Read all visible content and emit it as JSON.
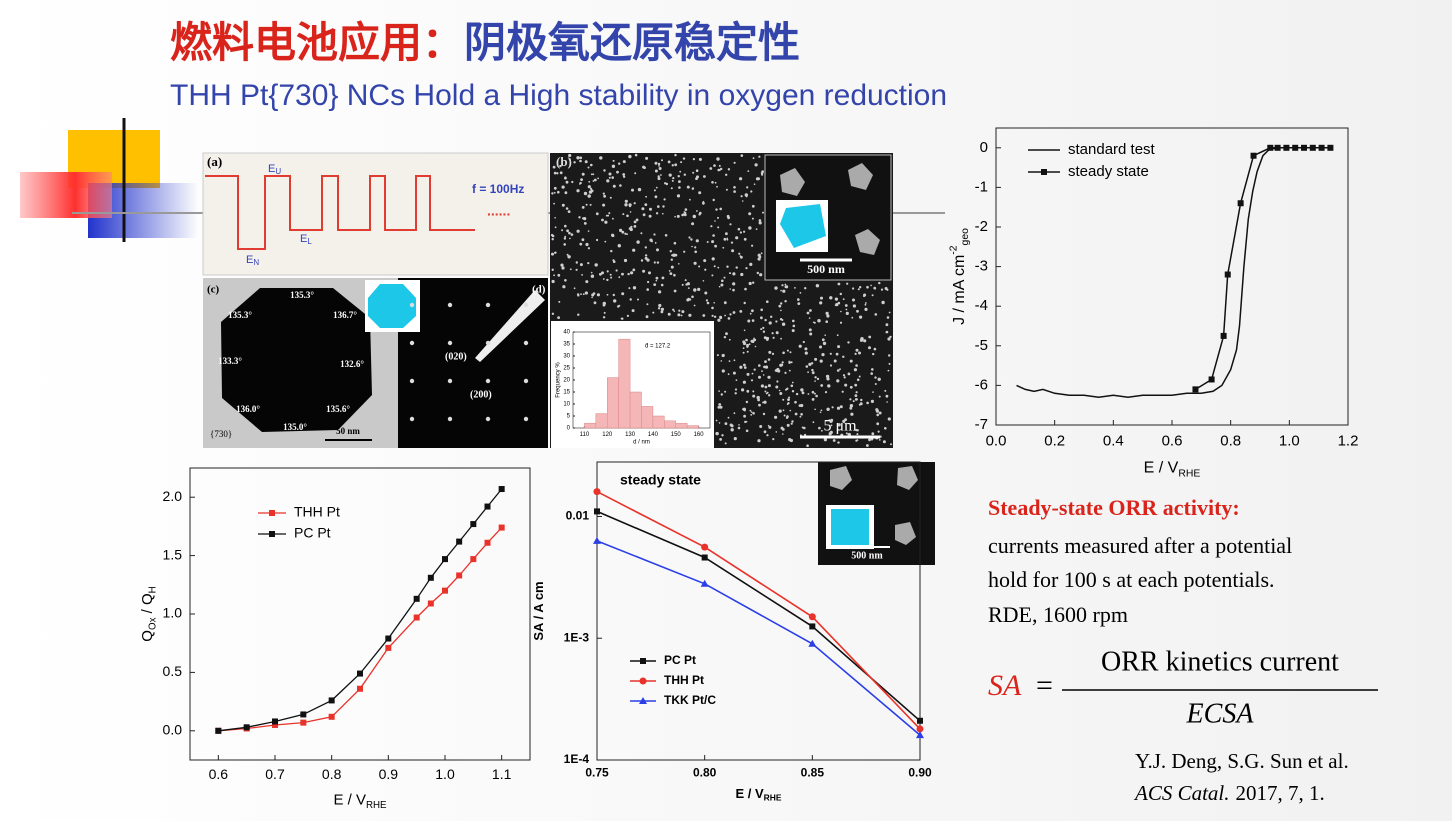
{
  "title": {
    "part1": "燃料电池应用：",
    "part2": "阴极氧还原稳定性"
  },
  "subtitle": "THH Pt{730} NCs Hold a High stability in oxygen reduction",
  "figure": {
    "a": {
      "label": "(a)",
      "eu": "E",
      "eu_sub": "U",
      "el": "E",
      "el_sub": "L",
      "en": "E",
      "en_sub": "N",
      "freq": "f = 100Hz",
      "dots": "......"
    },
    "b": {
      "label": "(b)",
      "inset_scale": "500 nm",
      "scale": "5 μm"
    },
    "c": {
      "label": "(c)",
      "angles": [
        "135.3°",
        "136.7°",
        "132.6°",
        "135.6°",
        "135.0°",
        "136.0°",
        "133.3°",
        "135.3°"
      ],
      "facet": "{730}",
      "scale": "50 nm"
    },
    "d": {
      "label": "(d)",
      "spots": [
        "(020)",
        "(200)"
      ]
    }
  },
  "note": {
    "heading": "Steady-state ORR activity:",
    "body": [
      "currents measured after a potential",
      "hold for 100 s at each potentials.",
      "RDE, 1600 rpm"
    ]
  },
  "formula": {
    "lhs": "SA",
    "eq": "=",
    "numerator": "ORR kinetics current",
    "denominator": "ECSA"
  },
  "reference": {
    "authors": "Y.J. Deng, S.G. Sun et al.",
    "journal": "ACS Catal.",
    "details": "2017, 7, 1."
  },
  "chart_data": [
    {
      "type": "line",
      "xlabel": {
        "text": "E / V",
        "sub": "RHE"
      },
      "ylabel": {
        "text": "J / mA cm",
        "sup": "-2",
        "sub": "geo"
      },
      "xlim": [
        0,
        1.2
      ],
      "xticks": [
        {
          "value": 0,
          "label": "0.0"
        },
        0.2,
        0.4,
        0.6,
        0.8,
        {
          "value": 1,
          "label": "1.0"
        },
        1.2
      ],
      "ylim": [
        -7,
        0.5
      ],
      "yticks": [
        0,
        -1,
        -2,
        -3,
        -4,
        -5,
        -6,
        -7
      ],
      "legend": "upper left",
      "series": [
        {
          "name": "standard test",
          "color": "#111111",
          "x": [
            0.07,
            0.1,
            0.13,
            0.16,
            0.2,
            0.25,
            0.3,
            0.35,
            0.4,
            0.45,
            0.5,
            0.55,
            0.6,
            0.65,
            0.7,
            0.74,
            0.77,
            0.8,
            0.82,
            0.83,
            0.845,
            0.86,
            0.875,
            0.89,
            0.91,
            0.93,
            0.96,
            1.0,
            1.05,
            1.1,
            1.13
          ],
          "values": [
            -6.0,
            -6.1,
            -6.15,
            -6.1,
            -6.2,
            -6.25,
            -6.25,
            -6.3,
            -6.25,
            -6.3,
            -6.25,
            -6.25,
            -6.25,
            -6.2,
            -6.2,
            -6.15,
            -6.0,
            -5.6,
            -5.1,
            -4.5,
            -3.0,
            -1.8,
            -1.1,
            -0.6,
            -0.2,
            -0.05,
            0,
            0,
            0,
            0,
            0
          ]
        },
        {
          "name": "steady state",
          "color": "#111111",
          "marker": "square",
          "x": [
            0.68,
            0.735,
            0.776,
            0.79,
            0.834,
            0.878,
            0.935,
            0.96,
            0.99,
            1.02,
            1.05,
            1.08,
            1.11,
            1.14
          ],
          "values": [
            -6.1,
            -5.85,
            -4.75,
            -3.2,
            -1.4,
            -0.2,
            0,
            0,
            0,
            0,
            0,
            0,
            0,
            0
          ]
        }
      ]
    },
    {
      "type": "line",
      "xlabel": {
        "text": "E / V",
        "sub": "RHE"
      },
      "ylabel": {
        "text": "Q",
        "sub": "Ox",
        "text2": " / Q",
        "sub2": "H"
      },
      "xlim": [
        0.55,
        1.15
      ],
      "xticks": [
        0.6,
        0.7,
        0.8,
        0.9,
        {
          "value": 1,
          "label": "1.0"
        },
        1.1
      ],
      "ylim": [
        -0.25,
        2.25
      ],
      "yticks": [
        {
          "value": 0,
          "label": "0.0"
        },
        0.5,
        {
          "value": 1,
          "label": "1.0"
        },
        1.5,
        {
          "value": 2,
          "label": "2.0"
        }
      ],
      "legend": "upper left",
      "x": [
        0.6,
        0.65,
        0.7,
        0.75,
        0.8,
        0.85,
        0.9,
        0.95,
        0.975,
        1.0,
        1.025,
        1.05,
        1.075,
        1.1
      ],
      "series": [
        {
          "name": "THH Pt",
          "color": "#e8322a",
          "marker": "square",
          "values": [
            0,
            0.02,
            0.05,
            0.07,
            0.12,
            0.36,
            0.71,
            0.97,
            1.09,
            1.2,
            1.33,
            1.47,
            1.61,
            1.74
          ]
        },
        {
          "name": "PC Pt",
          "color": "#111111",
          "marker": "square",
          "values": [
            0,
            0.03,
            0.08,
            0.14,
            0.26,
            0.49,
            0.79,
            1.13,
            1.31,
            1.47,
            1.62,
            1.77,
            1.92,
            2.07
          ]
        }
      ]
    },
    {
      "type": "line",
      "log_y": true,
      "annotation": "steady state",
      "inset_label": "500 nm",
      "xlabel": {
        "text": "E / V",
        "sub": "RHE"
      },
      "ylabel": {
        "text": "SA / A cm"
      },
      "xlim": [
        0.75,
        0.9
      ],
      "xticks": [
        0.75,
        {
          "value": 0.8,
          "label": "0.80"
        },
        0.85,
        {
          "value": 0.9,
          "label": "0.90"
        }
      ],
      "ylim": [
        0.0001,
        0.028
      ],
      "yticks": [
        {
          "value": 0.0001,
          "label": "1E-4"
        },
        {
          "value": 0.001,
          "label": "1E-3"
        },
        0.01
      ],
      "legend": "lower left",
      "x": [
        0.75,
        0.8,
        0.85,
        0.9
      ],
      "series": [
        {
          "name": "PC Pt",
          "color": "#111111",
          "marker": "square",
          "values": [
            0.011,
            0.0046,
            0.00125,
            0.00021
          ]
        },
        {
          "name": "THH Pt",
          "color": "#e8322a",
          "marker": "circle",
          "values": [
            0.016,
            0.0056,
            0.0015,
            0.00018
          ]
        },
        {
          "name": "TKK Pt/C",
          "color": "#2a3fe8",
          "marker": "triangle",
          "values": [
            0.0063,
            0.0028,
            0.0009,
            0.00016
          ]
        }
      ]
    },
    {
      "type": "histogram",
      "color": "#f4b6b6",
      "xlabel": "d / nm",
      "ylabel": "Frequency %",
      "annotation": "d̄ = 127.2",
      "bins": [
        110,
        115,
        120,
        125,
        130,
        135,
        140,
        145,
        150,
        155,
        160
      ],
      "values": [
        2,
        6,
        21,
        37,
        15,
        9,
        5,
        3,
        2,
        1
      ],
      "xlim": [
        105,
        165
      ],
      "xticks": [
        110,
        120,
        130,
        140,
        150,
        160
      ],
      "ylim": [
        0,
        40
      ],
      "yticks": [
        0,
        5,
        10,
        15,
        20,
        25,
        30,
        35,
        40
      ]
    }
  ]
}
